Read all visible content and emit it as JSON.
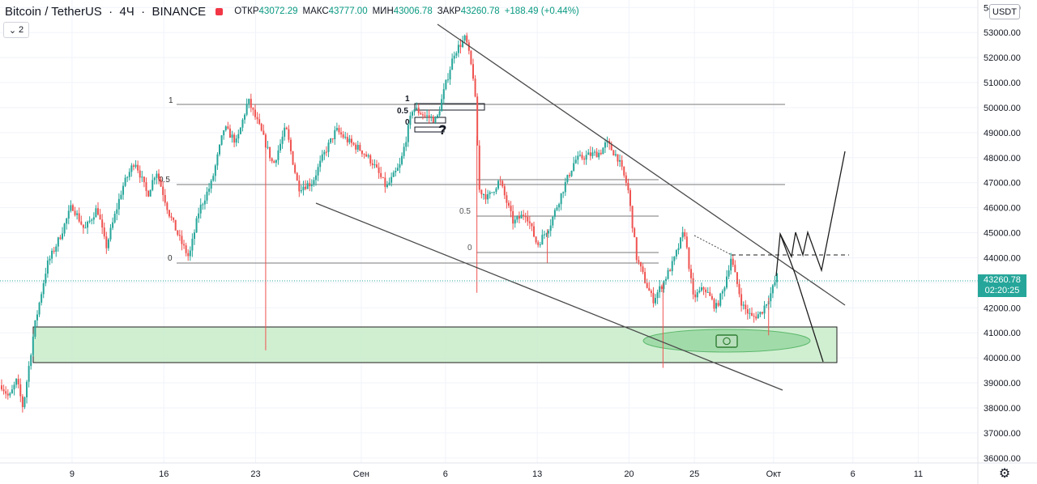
{
  "header": {
    "symbol": "Bitcoin / TetherUS",
    "interval": "4Ч",
    "exchange": "BINANCE",
    "open_label": "ОТКР",
    "open": "43072.29",
    "high_label": "МАКС",
    "high": "43777.00",
    "low_label": "МИН",
    "low": "43006.78",
    "close_label": "ЗАКР",
    "close": "43260.78",
    "change": "+188.49 (+0.44%)"
  },
  "collapse_button": {
    "count": "2"
  },
  "currency_button": "USDT",
  "last_price": {
    "value": "43260.78",
    "countdown": "02:20:25"
  },
  "colors": {
    "up": "#26a69a",
    "down": "#ef5350",
    "zone_fill": "#c8ecc9",
    "last_price_line": "#26a69a",
    "line": "#4a4a4a"
  },
  "chart_data": {
    "type": "candlestick",
    "symbol": "BTCUSDT",
    "timeframe": "4H",
    "x_tick_labels": [
      "9",
      "16",
      "23",
      "Сен",
      "6",
      "13",
      "20",
      "25",
      "Окт",
      "6",
      "11"
    ],
    "y_tick_labels": [
      "36000.00",
      "37000.00",
      "38000.00",
      "39000.00",
      "40000.00",
      "41000.00",
      "42000.00",
      "43000.00",
      "44000.00",
      "45000.00",
      "46000.00",
      "47000.00",
      "48000.00",
      "49000.00",
      "50000.00",
      "51000.00",
      "52000.00",
      "53000.00",
      "54000.00"
    ],
    "ylim": [
      35800,
      54300
    ],
    "price_path": [
      [
        0,
        38900
      ],
      [
        0.6,
        38400
      ],
      [
        1.2,
        39100
      ],
      [
        1.7,
        38000
      ],
      [
        2.6,
        41200
      ],
      [
        3.6,
        43700
      ],
      [
        4.6,
        44800
      ],
      [
        5.6,
        46100
      ],
      [
        6.6,
        45100
      ],
      [
        7.6,
        46000
      ],
      [
        8.3,
        44400
      ],
      [
        8.9,
        45500
      ],
      [
        9.6,
        46800
      ],
      [
        10.6,
        47900
      ],
      [
        11.6,
        46500
      ],
      [
        12.3,
        47500
      ],
      [
        13.3,
        45800
      ],
      [
        14.2,
        44700
      ],
      [
        14.9,
        44000
      ],
      [
        15.7,
        45900
      ],
      [
        16.7,
        47000
      ],
      [
        17.7,
        49200
      ],
      [
        18.7,
        48600
      ],
      [
        19.6,
        50300
      ],
      [
        20.6,
        49100
      ],
      [
        21.6,
        47700
      ],
      [
        22.6,
        49200
      ],
      [
        23.6,
        46800
      ],
      [
        24.7,
        47000
      ],
      [
        25.6,
        48100
      ],
      [
        26.6,
        49100
      ],
      [
        27.7,
        48600
      ],
      [
        28.6,
        48300
      ],
      [
        29.5,
        47800
      ],
      [
        30.6,
        46800
      ],
      [
        31.7,
        47700
      ],
      [
        32.7,
        50000
      ],
      [
        33.6,
        49700
      ],
      [
        34.6,
        49500
      ],
      [
        35.3,
        50900
      ],
      [
        36.0,
        52200
      ],
      [
        36.9,
        52800
      ],
      [
        37.6,
        51000
      ],
      [
        38.0,
        46700
      ],
      [
        38.7,
        46400
      ],
      [
        39.6,
        47100
      ],
      [
        40.7,
        45400
      ],
      [
        41.7,
        45800
      ],
      [
        42.6,
        44500
      ],
      [
        43.6,
        45300
      ],
      [
        44.7,
        46800
      ],
      [
        45.6,
        47900
      ],
      [
        46.7,
        48100
      ],
      [
        47.6,
        48200
      ],
      [
        48.1,
        48600
      ],
      [
        49.0,
        48000
      ],
      [
        49.8,
        46800
      ],
      [
        50.5,
        44000
      ],
      [
        51.3,
        42900
      ],
      [
        51.8,
        42300
      ],
      [
        52.5,
        42900
      ],
      [
        53.4,
        43800
      ],
      [
        54.3,
        45100
      ],
      [
        55.0,
        42400
      ],
      [
        55.9,
        42800
      ],
      [
        56.8,
        42000
      ],
      [
        57.4,
        42700
      ],
      [
        58.0,
        44000
      ],
      [
        58.9,
        42100
      ],
      [
        59.7,
        41600
      ],
      [
        60.4,
        41800
      ],
      [
        61.2,
        42600
      ],
      [
        61.7,
        43300
      ]
    ],
    "day_ticks": [
      {
        "label": "9",
        "day": 5.6
      },
      {
        "label": "16",
        "day": 12.9
      },
      {
        "label": "23",
        "day": 20.2
      },
      {
        "label": "Сен",
        "day": 28.6
      },
      {
        "label": "6",
        "day": 35.3
      },
      {
        "label": "13",
        "day": 42.6
      },
      {
        "label": "20",
        "day": 49.9
      },
      {
        "label": "25",
        "day": 55.1
      },
      {
        "label": "Окт",
        "day": 61.4
      },
      {
        "label": "6",
        "day": 67.7
      },
      {
        "label": "11",
        "day": 72.9
      }
    ],
    "annotations": {
      "fib_labels": [
        "1",
        "0.5",
        "0",
        "1",
        "0.5",
        "0",
        "0.5",
        "0"
      ],
      "question_mark": "?"
    }
  }
}
